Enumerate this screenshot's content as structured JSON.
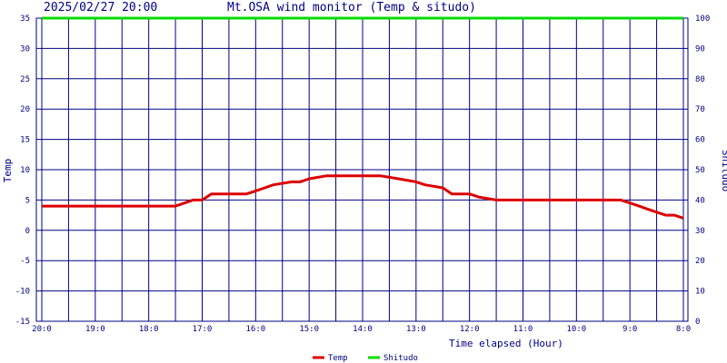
{
  "header": {
    "timestamp": "2025/02/27 20:00",
    "title": "Mt.OSA wind monitor (Temp & situdo)"
  },
  "chart_data": {
    "type": "line",
    "title": "Mt.OSA wind monitor (Temp & situdo)",
    "xlabel": "Time elapsed (Hour)",
    "ylabel_left": "Temp",
    "ylabel_right": "Shitudo",
    "x_ticks": [
      "20:0",
      "19:0",
      "18:0",
      "17:0",
      "16:0",
      "15:0",
      "14:0",
      "13:0",
      "12:0",
      "11:0",
      "10:0",
      "9:0",
      "8:0"
    ],
    "x_range_hours_ago": [
      0,
      12
    ],
    "y_left_ticks": [
      "35",
      "30",
      "25",
      "20",
      "15",
      "10",
      "5",
      "0",
      "-5",
      "-10",
      "-15"
    ],
    "y_right_ticks": [
      "100",
      "90",
      "80",
      "70",
      "60",
      "50",
      "40",
      "30",
      "20",
      "10",
      "0"
    ],
    "y_left_range": [
      -15,
      35
    ],
    "y_right_range": [
      0,
      100
    ],
    "grid": true,
    "legend_position": "bottom-center",
    "series": [
      {
        "name": "Temp",
        "color": "#dd0000",
        "axis": "left",
        "x_hours_ago": [
          0,
          1.67,
          1.83,
          2.0,
          2.33,
          2.5,
          2.67,
          2.83,
          3.0,
          3.17,
          3.33,
          3.5,
          3.67,
          3.83,
          4.0,
          4.17,
          4.33,
          4.67,
          4.83,
          5.0,
          5.33,
          5.67,
          5.83,
          6.0,
          6.33,
          6.67,
          7.0,
          7.17,
          7.5,
          7.67,
          7.83,
          8.0,
          8.17,
          8.5,
          8.67,
          8.83,
          9.0,
          9.17,
          9.33,
          9.5,
          9.67,
          9.83,
          10.0,
          10.17,
          10.33,
          10.5,
          10.67,
          10.83,
          11.0,
          11.17,
          11.33,
          11.5,
          11.67,
          11.83,
          12.0
        ],
        "values": [
          4,
          4,
          4,
          4,
          4,
          4,
          4.5,
          5,
          5,
          6,
          6,
          6,
          6,
          6,
          6.5,
          7,
          7.5,
          8,
          8,
          8.5,
          9,
          9,
          9,
          9,
          9,
          8.5,
          8,
          7.5,
          7,
          6,
          6,
          6,
          5.5,
          5,
          5,
          5,
          5,
          5,
          5,
          5,
          5,
          5,
          5,
          5,
          5,
          5,
          5,
          5,
          4.5,
          4,
          3.5,
          3,
          2.5,
          2.5,
          2
        ]
      },
      {
        "name": "Shitudo",
        "color": "#00dd00",
        "axis": "right",
        "x_hours_ago": [
          0,
          12
        ],
        "values": [
          100,
          100
        ]
      }
    ]
  }
}
